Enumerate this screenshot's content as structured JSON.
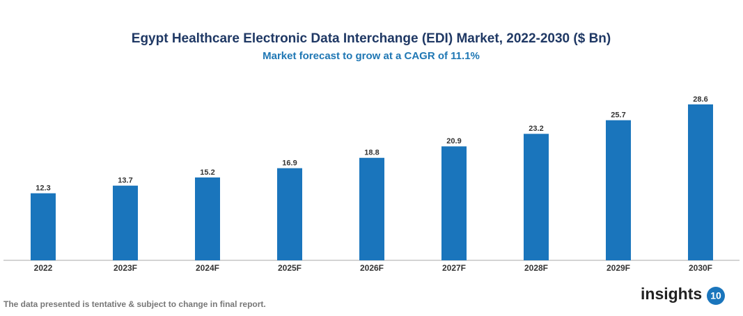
{
  "chart_data": {
    "type": "bar",
    "title": "Egypt Healthcare Electronic Data Interchange (EDI) Market, 2022-2030 ($ Bn)",
    "subtitle": "Market forecast to grow at a CAGR of 11.1%",
    "categories": [
      "2022",
      "2023F",
      "2024F",
      "2025F",
      "2026F",
      "2027F",
      "2028F",
      "2029F",
      "2030F"
    ],
    "values": [
      12.3,
      13.7,
      15.2,
      16.9,
      18.8,
      20.9,
      23.2,
      25.7,
      28.6
    ],
    "color": "#1a75bc"
  },
  "footnote": "The data presented is tentative & subject to change in final report.",
  "logo": {
    "text": "insights",
    "badge": "10"
  }
}
